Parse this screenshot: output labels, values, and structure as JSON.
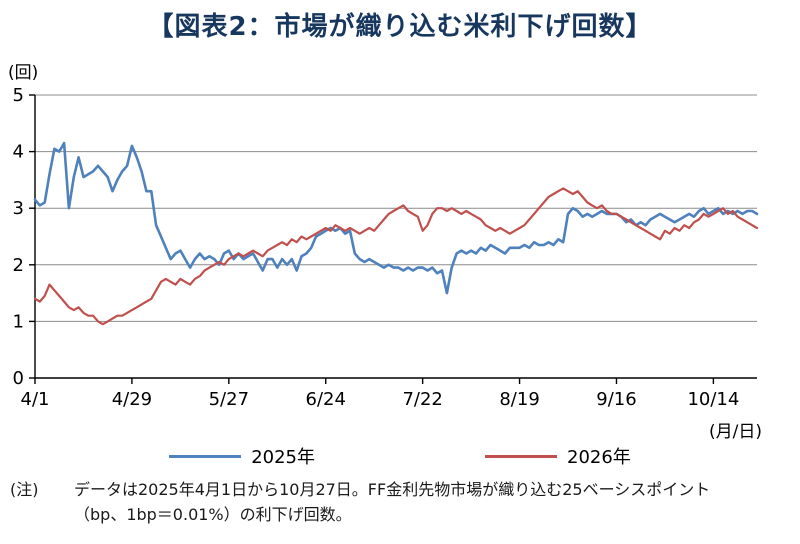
{
  "title": "【図表2：市場が織り込む米利下げ回数】",
  "y_axis_unit": "(回)",
  "x_axis_unit": "(月/日)",
  "colors": {
    "title": "#17375E",
    "axis": "#000000",
    "grid": "#8C8C8C"
  },
  "legend": [
    {
      "label": "2025年",
      "color": "#4F81BD"
    },
    {
      "label": "2026年",
      "color": "#C0504D"
    }
  ],
  "note": {
    "prefix": "(注)",
    "line1": "データは2025年4月1日から10月27日。FF金利先物市場が織り込む25ベーシスポイント",
    "line2": "（bp、1bp＝0.01%）の利下げ回数。"
  },
  "chart_data": {
    "type": "line",
    "title": "【図表2：市場が織り込む米利下げ回数】",
    "xlabel": "(月/日)",
    "ylabel": "(回)",
    "ylim": [
      0,
      5
    ],
    "yticks": [
      0,
      1,
      2,
      3,
      4,
      5
    ],
    "grid": "horizontal",
    "legend_position": "bottom",
    "x_tick_labels": [
      "4/1",
      "4/29",
      "5/27",
      "6/24",
      "7/22",
      "8/19",
      "9/16",
      "10/14"
    ],
    "x_tick_indices": [
      0,
      20,
      40,
      60,
      80,
      100,
      120,
      140
    ],
    "x_range_note": "daily business days 2025-04-01 to 2025-10-27",
    "series": [
      {
        "name": "2025年",
        "color": "#4F81BD",
        "values": [
          3.15,
          3.05,
          3.1,
          3.6,
          4.05,
          4.0,
          4.15,
          3.0,
          3.55,
          3.9,
          3.55,
          3.6,
          3.65,
          3.75,
          3.65,
          3.55,
          3.3,
          3.5,
          3.65,
          3.75,
          4.1,
          3.9,
          3.65,
          3.3,
          3.3,
          2.7,
          2.5,
          2.3,
          2.1,
          2.2,
          2.25,
          2.1,
          1.95,
          2.1,
          2.2,
          2.1,
          2.15,
          2.1,
          2.0,
          2.2,
          2.25,
          2.1,
          2.2,
          2.1,
          2.15,
          2.2,
          2.05,
          1.9,
          2.1,
          2.1,
          1.95,
          2.1,
          2.0,
          2.1,
          1.9,
          2.15,
          2.2,
          2.3,
          2.5,
          2.55,
          2.6,
          2.65,
          2.6,
          2.65,
          2.55,
          2.6,
          2.2,
          2.1,
          2.05,
          2.1,
          2.05,
          2.0,
          1.95,
          2.0,
          1.95,
          1.95,
          1.9,
          1.95,
          1.9,
          1.95,
          1.95,
          1.9,
          1.95,
          1.85,
          1.9,
          1.5,
          1.95,
          2.2,
          2.25,
          2.2,
          2.25,
          2.2,
          2.3,
          2.25,
          2.35,
          2.3,
          2.25,
          2.2,
          2.3,
          2.3,
          2.3,
          2.35,
          2.3,
          2.4,
          2.35,
          2.35,
          2.4,
          2.35,
          2.45,
          2.4,
          2.9,
          3.0,
          2.95,
          2.85,
          2.9,
          2.85,
          2.9,
          2.95,
          2.9,
          2.9,
          2.9,
          2.85,
          2.75,
          2.8,
          2.7,
          2.75,
          2.7,
          2.8,
          2.85,
          2.9,
          2.85,
          2.8,
          2.75,
          2.8,
          2.85,
          2.9,
          2.85,
          2.95,
          3.0,
          2.9,
          2.95,
          3.0,
          2.9,
          2.95,
          2.9,
          2.95,
          2.9,
          2.95,
          2.95,
          2.9
        ]
      },
      {
        "name": "2026年",
        "color": "#C0504D",
        "values": [
          1.4,
          1.35,
          1.45,
          1.65,
          1.55,
          1.45,
          1.35,
          1.25,
          1.2,
          1.25,
          1.15,
          1.1,
          1.1,
          1.0,
          0.95,
          1.0,
          1.05,
          1.1,
          1.1,
          1.15,
          1.2,
          1.25,
          1.3,
          1.35,
          1.4,
          1.55,
          1.7,
          1.75,
          1.7,
          1.65,
          1.75,
          1.7,
          1.65,
          1.75,
          1.8,
          1.9,
          1.95,
          2.0,
          2.05,
          2.0,
          2.1,
          2.15,
          2.2,
          2.15,
          2.2,
          2.25,
          2.2,
          2.15,
          2.25,
          2.3,
          2.35,
          2.4,
          2.35,
          2.45,
          2.4,
          2.5,
          2.45,
          2.5,
          2.55,
          2.6,
          2.65,
          2.6,
          2.7,
          2.65,
          2.6,
          2.65,
          2.6,
          2.55,
          2.6,
          2.65,
          2.6,
          2.7,
          2.8,
          2.9,
          2.95,
          3.0,
          3.05,
          2.95,
          2.9,
          2.85,
          2.6,
          2.7,
          2.9,
          3.0,
          3.0,
          2.95,
          3.0,
          2.95,
          2.9,
          2.95,
          2.9,
          2.85,
          2.8,
          2.7,
          2.65,
          2.6,
          2.65,
          2.6,
          2.55,
          2.6,
          2.65,
          2.7,
          2.8,
          2.9,
          3.0,
          3.1,
          3.2,
          3.25,
          3.3,
          3.35,
          3.3,
          3.25,
          3.3,
          3.2,
          3.1,
          3.05,
          3.0,
          3.05,
          2.95,
          2.9,
          2.9,
          2.85,
          2.8,
          2.75,
          2.7,
          2.65,
          2.6,
          2.55,
          2.5,
          2.45,
          2.6,
          2.55,
          2.65,
          2.6,
          2.7,
          2.65,
          2.75,
          2.8,
          2.9,
          2.85,
          2.9,
          2.95,
          3.0,
          2.9,
          2.95,
          2.85,
          2.8,
          2.75,
          2.7,
          2.65
        ]
      }
    ]
  }
}
